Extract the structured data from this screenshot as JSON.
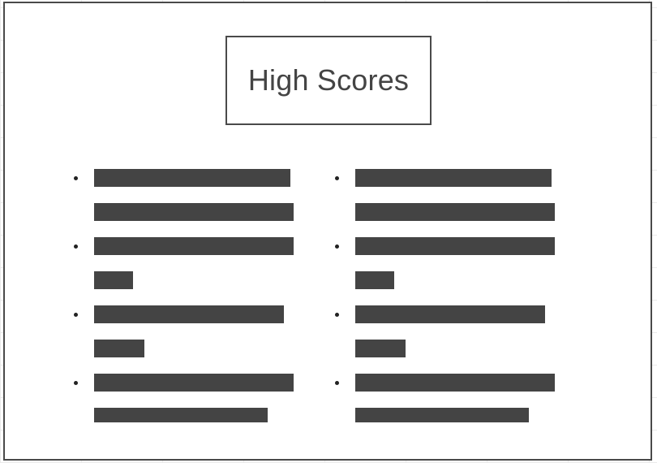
{
  "title": "High Scores",
  "colors": {
    "frame": "#4a4a4a",
    "bar": "#444444",
    "title_text": "#444444",
    "background": "#ffffff"
  },
  "columns": [
    {
      "entries": [
        {
          "bullet": true,
          "redacted": true
        },
        {
          "bullet": false,
          "redacted": true
        },
        {
          "bullet": true,
          "redacted": true
        },
        {
          "bullet": false,
          "redacted": true
        },
        {
          "bullet": true,
          "redacted": true
        },
        {
          "bullet": false,
          "redacted": true
        },
        {
          "bullet": true,
          "redacted": true
        },
        {
          "bullet": false,
          "redacted": true
        }
      ]
    },
    {
      "entries": [
        {
          "bullet": true,
          "redacted": true
        },
        {
          "bullet": false,
          "redacted": true
        },
        {
          "bullet": true,
          "redacted": true
        },
        {
          "bullet": false,
          "redacted": true
        },
        {
          "bullet": true,
          "redacted": true
        },
        {
          "bullet": false,
          "redacted": true
        },
        {
          "bullet": true,
          "redacted": true
        },
        {
          "bullet": false,
          "redacted": true
        }
      ]
    }
  ]
}
